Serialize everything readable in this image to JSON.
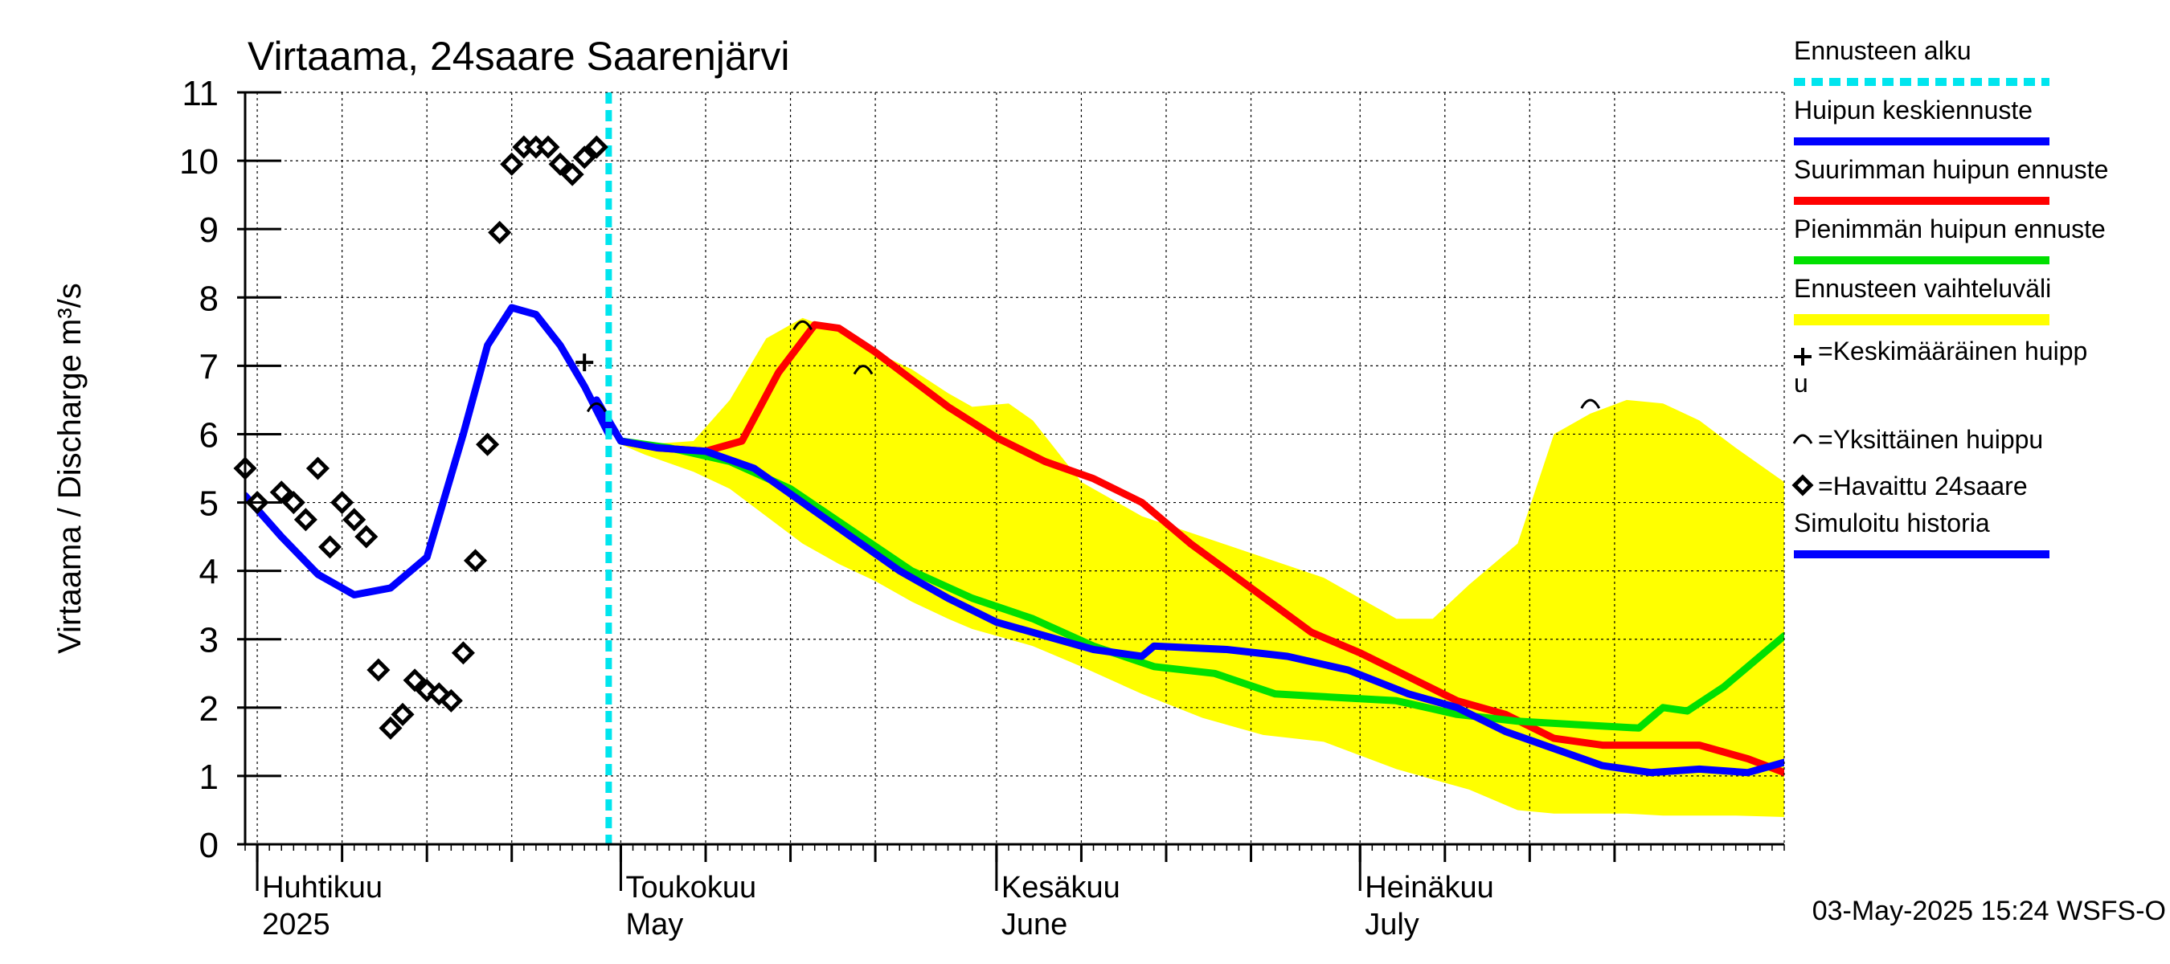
{
  "chart_data": {
    "type": "line",
    "title": "Virtaama, 24saare Saarenjärvi",
    "ylabel": "Virtaama / Discharge    m³/s",
    "ylim": [
      0,
      11
    ],
    "yticks": [
      0,
      1,
      2,
      3,
      4,
      5,
      6,
      7,
      8,
      9,
      10,
      11
    ],
    "x_range": [
      "2025-03-31",
      "2025-08-05"
    ],
    "month_labels": [
      {
        "date": "2025-04-01",
        "line1": "Huhtikuu",
        "line2": "2025"
      },
      {
        "date": "2025-05-01",
        "line1": "Toukokuu",
        "line2": "May"
      },
      {
        "date": "2025-06-01",
        "line1": "Kesäkuu",
        "line2": "June"
      },
      {
        "date": "2025-07-01",
        "line1": "Heinäkuu",
        "line2": "July"
      }
    ],
    "forecast_start": "2025-04-30",
    "footer": "03-May-2025 15:24 WSFS-O",
    "legend": [
      {
        "label": "Ennusteen alku",
        "color": "#00e5ee",
        "style": "dotted"
      },
      {
        "label": "Huipun keskiennuste",
        "color": "#0000ff",
        "style": "line"
      },
      {
        "label": "Suurimman huipun ennuste",
        "color": "#ff0000",
        "style": "line"
      },
      {
        "label": "Pienimmän huipun ennuste",
        "color": "#00e000",
        "style": "line"
      },
      {
        "label": "Ennusteen vaihteluväli",
        "color": "#ffff00",
        "style": "band"
      },
      {
        "label": "=Keskimääräinen huipp\nu",
        "color": "#000000",
        "style": "plus"
      },
      {
        "label": "=Yksittäinen huippu",
        "color": "#000000",
        "style": "arc"
      },
      {
        "label": "=Havaittu 24saare",
        "color": "#000000",
        "style": "diamond"
      },
      {
        "label": "Simuloitu historia",
        "color": "#0000ff",
        "style": "line"
      }
    ],
    "series": [
      {
        "name": "Ennusteen vaihteluväli",
        "type": "band",
        "color": "#ffff00",
        "x": [
          "2025-05-01",
          "2025-05-03",
          "2025-05-07",
          "2025-05-10",
          "2025-05-13",
          "2025-05-16",
          "2025-05-19",
          "2025-05-22",
          "2025-05-25",
          "2025-05-28",
          "2025-05-30",
          "2025-06-02",
          "2025-06-04",
          "2025-06-08",
          "2025-06-13",
          "2025-06-18",
          "2025-06-23",
          "2025-06-28",
          "2025-07-01",
          "2025-07-04",
          "2025-07-07",
          "2025-07-10",
          "2025-07-14",
          "2025-07-17",
          "2025-07-20",
          "2025-07-23",
          "2025-07-26",
          "2025-07-29",
          "2025-08-01",
          "2025-08-05"
        ],
        "upper": [
          5.9,
          5.85,
          5.9,
          6.5,
          7.4,
          7.7,
          7.5,
          7.2,
          6.95,
          6.6,
          6.4,
          6.45,
          6.2,
          5.3,
          4.8,
          4.5,
          4.2,
          3.9,
          3.6,
          3.3,
          3.3,
          3.8,
          4.4,
          6.0,
          6.3,
          6.5,
          6.45,
          6.2,
          5.8,
          5.3
        ],
        "lower": [
          5.85,
          5.7,
          5.45,
          5.2,
          4.8,
          4.4,
          4.1,
          3.85,
          3.55,
          3.3,
          3.15,
          3.0,
          2.9,
          2.6,
          2.2,
          1.85,
          1.6,
          1.5,
          1.3,
          1.1,
          0.95,
          0.8,
          0.5,
          0.45,
          0.45,
          0.45,
          0.42,
          0.42,
          0.42,
          0.4
        ]
      },
      {
        "name": "Suurimman huipun ennuste",
        "type": "line",
        "color": "#ff0000",
        "x": [
          "2025-05-01",
          "2025-05-04",
          "2025-05-08",
          "2025-05-11",
          "2025-05-14",
          "2025-05-17",
          "2025-05-19",
          "2025-05-22",
          "2025-05-25",
          "2025-05-28",
          "2025-06-01",
          "2025-06-05",
          "2025-06-09",
          "2025-06-13",
          "2025-06-17",
          "2025-06-22",
          "2025-06-27",
          "2025-07-01",
          "2025-07-05",
          "2025-07-09",
          "2025-07-13",
          "2025-07-17",
          "2025-07-21",
          "2025-07-25",
          "2025-07-29",
          "2025-08-02",
          "2025-08-05"
        ],
        "y": [
          5.9,
          5.8,
          5.75,
          5.9,
          6.9,
          7.6,
          7.55,
          7.2,
          6.8,
          6.4,
          5.95,
          5.6,
          5.35,
          5.0,
          4.4,
          3.75,
          3.1,
          2.8,
          2.45,
          2.1,
          1.9,
          1.55,
          1.45,
          1.45,
          1.45,
          1.25,
          1.05
        ]
      },
      {
        "name": "Pienimmän huipun ennuste",
        "type": "line",
        "color": "#00e000",
        "x": [
          "2025-05-01",
          "2025-05-05",
          "2025-05-10",
          "2025-05-15",
          "2025-05-20",
          "2025-05-25",
          "2025-05-30",
          "2025-06-04",
          "2025-06-09",
          "2025-06-14",
          "2025-06-19",
          "2025-06-24",
          "2025-06-29",
          "2025-07-04",
          "2025-07-09",
          "2025-07-14",
          "2025-07-19",
          "2025-07-24",
          "2025-07-26",
          "2025-07-28",
          "2025-07-31",
          "2025-08-02",
          "2025-08-05"
        ],
        "y": [
          5.9,
          5.8,
          5.6,
          5.2,
          4.6,
          4.0,
          3.6,
          3.3,
          2.9,
          2.6,
          2.5,
          2.2,
          2.15,
          2.1,
          1.9,
          1.8,
          1.75,
          1.7,
          2.0,
          1.95,
          2.3,
          2.6,
          3.05
        ]
      },
      {
        "name": "Huipun keskiennuste",
        "type": "line",
        "color": "#0000ff",
        "x": [
          "2025-04-29",
          "2025-05-01",
          "2025-05-04",
          "2025-05-08",
          "2025-05-12",
          "2025-05-16",
          "2025-05-20",
          "2025-05-24",
          "2025-05-28",
          "2025-06-01",
          "2025-06-05",
          "2025-06-09",
          "2025-06-13",
          "2025-06-14",
          "2025-06-20",
          "2025-06-25",
          "2025-06-30",
          "2025-07-05",
          "2025-07-09",
          "2025-07-13",
          "2025-07-17",
          "2025-07-21",
          "2025-07-25",
          "2025-07-29",
          "2025-08-02",
          "2025-08-05"
        ],
        "y": [
          6.5,
          5.9,
          5.8,
          5.75,
          5.5,
          5.0,
          4.5,
          4.0,
          3.6,
          3.25,
          3.05,
          2.85,
          2.75,
          2.9,
          2.85,
          2.75,
          2.55,
          2.2,
          2.0,
          1.65,
          1.4,
          1.15,
          1.05,
          1.1,
          1.05,
          1.2
        ]
      },
      {
        "name": "Simuloitu historia",
        "type": "line",
        "color": "#0000ff",
        "x": [
          "2025-03-31",
          "2025-04-03",
          "2025-04-06",
          "2025-04-09",
          "2025-04-12",
          "2025-04-15",
          "2025-04-18",
          "2025-04-20",
          "2025-04-22",
          "2025-04-24",
          "2025-04-26",
          "2025-04-28",
          "2025-04-30"
        ],
        "y": [
          5.1,
          4.5,
          3.95,
          3.65,
          3.75,
          4.2,
          6.0,
          7.3,
          7.85,
          7.75,
          7.3,
          6.7,
          6.0
        ]
      },
      {
        "name": "=Havaittu 24saare",
        "type": "scatter",
        "color": "#000000",
        "x": [
          "2025-03-31",
          "2025-04-01",
          "2025-04-03",
          "2025-04-04",
          "2025-04-05",
          "2025-04-06",
          "2025-04-07",
          "2025-04-08",
          "2025-04-09",
          "2025-04-10",
          "2025-04-11",
          "2025-04-12",
          "2025-04-13",
          "2025-04-14",
          "2025-04-15",
          "2025-04-16",
          "2025-04-17",
          "2025-04-18",
          "2025-04-19",
          "2025-04-20",
          "2025-04-21",
          "2025-04-22",
          "2025-04-23",
          "2025-04-24",
          "2025-04-25",
          "2025-04-26",
          "2025-04-27",
          "2025-04-28",
          "2025-04-29"
        ],
        "y": [
          5.5,
          5.0,
          5.15,
          5.0,
          4.75,
          5.5,
          4.35,
          5.0,
          4.75,
          4.5,
          2.55,
          1.7,
          1.9,
          2.4,
          2.25,
          2.2,
          2.1,
          2.8,
          4.15,
          5.85,
          8.95,
          9.95,
          10.2,
          10.2,
          10.2,
          9.95,
          9.8,
          10.05,
          10.2
        ]
      },
      {
        "name": "=Yksittäinen huippu",
        "type": "marker",
        "color": "#000000",
        "x": [
          "2025-04-29",
          "2025-05-16",
          "2025-05-21",
          "2025-07-20"
        ],
        "y": [
          6.4,
          7.6,
          6.95,
          6.45
        ]
      },
      {
        "name": "=Keskimääräinen huipp\nu",
        "type": "marker",
        "color": "#000000",
        "x": [
          "2025-04-28"
        ],
        "y": [
          7.05
        ]
      }
    ]
  }
}
